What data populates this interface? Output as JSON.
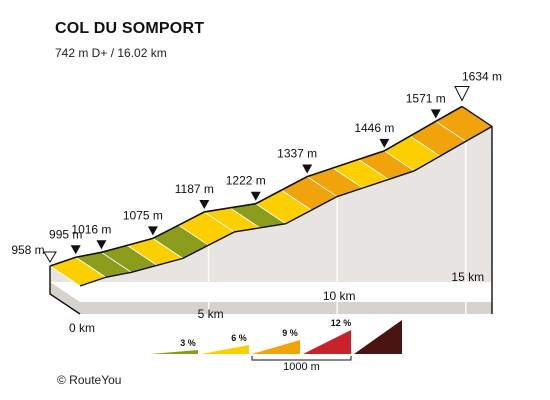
{
  "header": {
    "title": "COL DU SOMPORT",
    "subtitle": "742 m D+ / 16.02 km"
  },
  "footer": {
    "credit": "© RouteYou"
  },
  "chart_data": {
    "type": "area",
    "title": "COL DU SOMPORT",
    "subtitle": "742 m D+ / 16.02 km",
    "xlabel": "",
    "ylabel": "",
    "x_unit": "km",
    "y_unit": "m",
    "xlim": [
      0,
      16.02
    ],
    "x_ticks": [
      {
        "value": 0,
        "label": "0 km"
      },
      {
        "value": 5,
        "label": "5 km"
      },
      {
        "value": 10,
        "label": "10 km"
      },
      {
        "value": 15,
        "label": "15 km"
      }
    ],
    "start_elevation": 958,
    "start_label": "958 m",
    "summit_elevation": 1634,
    "summit_label": "1634 m",
    "markers": [
      {
        "km": 1,
        "elevation": 995,
        "label": "995 m"
      },
      {
        "km": 2,
        "elevation": 1016,
        "label": "1016 m"
      },
      {
        "km": 4,
        "elevation": 1075,
        "label": "1075 m"
      },
      {
        "km": 6,
        "elevation": 1187,
        "label": "1187 m"
      },
      {
        "km": 8,
        "elevation": 1222,
        "label": "1222 m"
      },
      {
        "km": 10,
        "elevation": 1337,
        "label": "1337 m"
      },
      {
        "km": 13,
        "elevation": 1446,
        "label": "1446 m"
      },
      {
        "km": 15,
        "elevation": 1571,
        "label": "1571 m"
      }
    ],
    "segments": [
      {
        "from_km": 0,
        "to_km": 1,
        "category": "6"
      },
      {
        "from_km": 1,
        "to_km": 2,
        "category": "3"
      },
      {
        "from_km": 2,
        "to_km": 3,
        "category": "3"
      },
      {
        "from_km": 3,
        "to_km": 4,
        "category": "6"
      },
      {
        "from_km": 4,
        "to_km": 5,
        "category": "3"
      },
      {
        "from_km": 5,
        "to_km": 6,
        "category": "6"
      },
      {
        "from_km": 6,
        "to_km": 7,
        "category": "6"
      },
      {
        "from_km": 7,
        "to_km": 8,
        "category": "3"
      },
      {
        "from_km": 8,
        "to_km": 9,
        "category": "6"
      },
      {
        "from_km": 9,
        "to_km": 10,
        "category": "9"
      },
      {
        "from_km": 10,
        "to_km": 11,
        "category": "9"
      },
      {
        "from_km": 11,
        "to_km": 12,
        "category": "6"
      },
      {
        "from_km": 12,
        "to_km": 13,
        "category": "9"
      },
      {
        "from_km": 13,
        "to_km": 14,
        "category": "6"
      },
      {
        "from_km": 14,
        "to_km": 15,
        "category": "9"
      },
      {
        "from_km": 15,
        "to_km": 16.02,
        "category": "9"
      }
    ],
    "legend": {
      "placement": "bottom",
      "items": [
        {
          "key": "3",
          "label": "3 %",
          "color": "#8c9c1c"
        },
        {
          "key": "6",
          "label": "6 %",
          "color": "#fcd000"
        },
        {
          "key": "9",
          "label": "9 %",
          "color": "#f0a30a"
        },
        {
          "key": "12",
          "label": "12 %",
          "color": "#c8232a"
        },
        {
          "key": "max",
          "label": "",
          "color": "#4a1410"
        }
      ],
      "scale_label": "1000 m"
    },
    "colors": {
      "side_wall": "#e8e4e1",
      "base_top": "#d6d2ce",
      "outline": "#111111"
    }
  }
}
